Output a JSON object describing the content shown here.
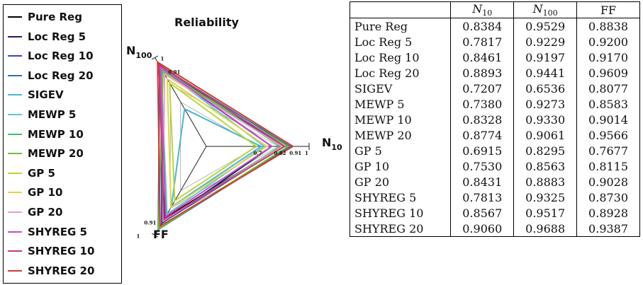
{
  "legend": {
    "items": [
      {
        "label": "Pure Reg",
        "color": "#000000"
      },
      {
        "label": "Loc Reg 5",
        "color": "#1f1f6b"
      },
      {
        "label": "Loc Reg 10",
        "color": "#3d47b8"
      },
      {
        "label": "Loc Reg 20",
        "color": "#2f6fa6"
      },
      {
        "label": "SIGEV",
        "color": "#4fb3d8"
      },
      {
        "label": "MEWP 5",
        "color": "#5ccccc"
      },
      {
        "label": "MEWP 10",
        "color": "#3fbf6f"
      },
      {
        "label": "MEWP 20",
        "color": "#6fbf3a"
      },
      {
        "label": "GP 5",
        "color": "#b8d63a"
      },
      {
        "label": "GP 10",
        "color": "#e3d24a"
      },
      {
        "label": "GP 20",
        "color": "#e8a0c0"
      },
      {
        "label": "SHYREG 5",
        "color": "#c84fc0"
      },
      {
        "label": "SHYREG 10",
        "color": "#c83a7a"
      },
      {
        "label": "SHYREG 20",
        "color": "#d43a2a"
      }
    ]
  },
  "chart_data": {
    "type": "radar",
    "title": "Reliability",
    "axes": [
      {
        "key": "N10",
        "label_main": "N",
        "label_sub": "10"
      },
      {
        "key": "N100",
        "label_main": "N",
        "label_sub": "100"
      },
      {
        "key": "FF",
        "label_main": "FF",
        "label_sub": ""
      }
    ],
    "range": [
      0.4,
      1
    ],
    "tick_labels": {
      "N10": [
        "0.7",
        "0.82",
        "0.91",
        "1"
      ],
      "N100": [
        "0.91",
        "1"
      ],
      "FF": [
        "0.91",
        "1"
      ]
    },
    "series": [
      {
        "name": "Pure Reg",
        "N10": 0.8384,
        "N100": 0.9529,
        "FF": 0.8838
      },
      {
        "name": "Loc Reg 5",
        "N10": 0.7817,
        "N100": 0.9229,
        "FF": 0.92
      },
      {
        "name": "Loc Reg 10",
        "N10": 0.8461,
        "N100": 0.9197,
        "FF": 0.917
      },
      {
        "name": "Loc Reg 20",
        "N10": 0.8893,
        "N100": 0.9441,
        "FF": 0.9609
      },
      {
        "name": "SIGEV",
        "N10": 0.7207,
        "N100": 0.6536,
        "FF": 0.8077
      },
      {
        "name": "MEWP 5",
        "N10": 0.738,
        "N100": 0.9273,
        "FF": 0.8583
      },
      {
        "name": "MEWP 10",
        "N10": 0.8328,
        "N100": 0.933,
        "FF": 0.9014
      },
      {
        "name": "MEWP 20",
        "N10": 0.8774,
        "N100": 0.9061,
        "FF": 0.9566
      },
      {
        "name": "GP 5",
        "N10": 0.6915,
        "N100": 0.8295,
        "FF": 0.7677
      },
      {
        "name": "GP 10",
        "N10": 0.753,
        "N100": 0.8563,
        "FF": 0.8115
      },
      {
        "name": "GP 20",
        "N10": 0.8431,
        "N100": 0.8883,
        "FF": 0.9028
      },
      {
        "name": "SHYREG 5",
        "N10": 0.7813,
        "N100": 0.9325,
        "FF": 0.873
      },
      {
        "name": "SHYREG 10",
        "N10": 0.8567,
        "N100": 0.9517,
        "FF": 0.8928
      },
      {
        "name": "SHYREG 20",
        "N10": 0.906,
        "N100": 0.9688,
        "FF": 0.9387
      }
    ]
  },
  "table": {
    "headers": [
      {
        "main": "",
        "sub": ""
      },
      {
        "main": "N",
        "sub": "10"
      },
      {
        "main": "N",
        "sub": "100"
      },
      {
        "main": "FF",
        "sub": ""
      }
    ],
    "rows": [
      [
        "Pure Reg",
        "0.8384",
        "0.9529",
        "0.8838"
      ],
      [
        "Loc Reg 5",
        "0.7817",
        "0.9229",
        "0.9200"
      ],
      [
        "Loc Reg 10",
        "0.8461",
        "0.9197",
        "0.9170"
      ],
      [
        "Loc Reg 20",
        "0.8893",
        "0.9441",
        "0.9609"
      ],
      [
        "SIGEV",
        "0.7207",
        "0.6536",
        "0.8077"
      ],
      [
        "MEWP 5",
        "0.7380",
        "0.9273",
        "0.8583"
      ],
      [
        "MEWP 10",
        "0.8328",
        "0.9330",
        "0.9014"
      ],
      [
        "MEWP 20",
        "0.8774",
        "0.9061",
        "0.9566"
      ],
      [
        "GP 5",
        "0.6915",
        "0.8295",
        "0.7677"
      ],
      [
        "GP 10",
        "0.7530",
        "0.8563",
        "0.8115"
      ],
      [
        "GP 20",
        "0.8431",
        "0.8883",
        "0.9028"
      ],
      [
        "SHYREG 5",
        "0.7813",
        "0.9325",
        "0.8730"
      ],
      [
        "SHYREG 10",
        "0.8567",
        "0.9517",
        "0.8928"
      ],
      [
        "SHYREG 20",
        "0.9060",
        "0.9688",
        "0.9387"
      ]
    ]
  }
}
